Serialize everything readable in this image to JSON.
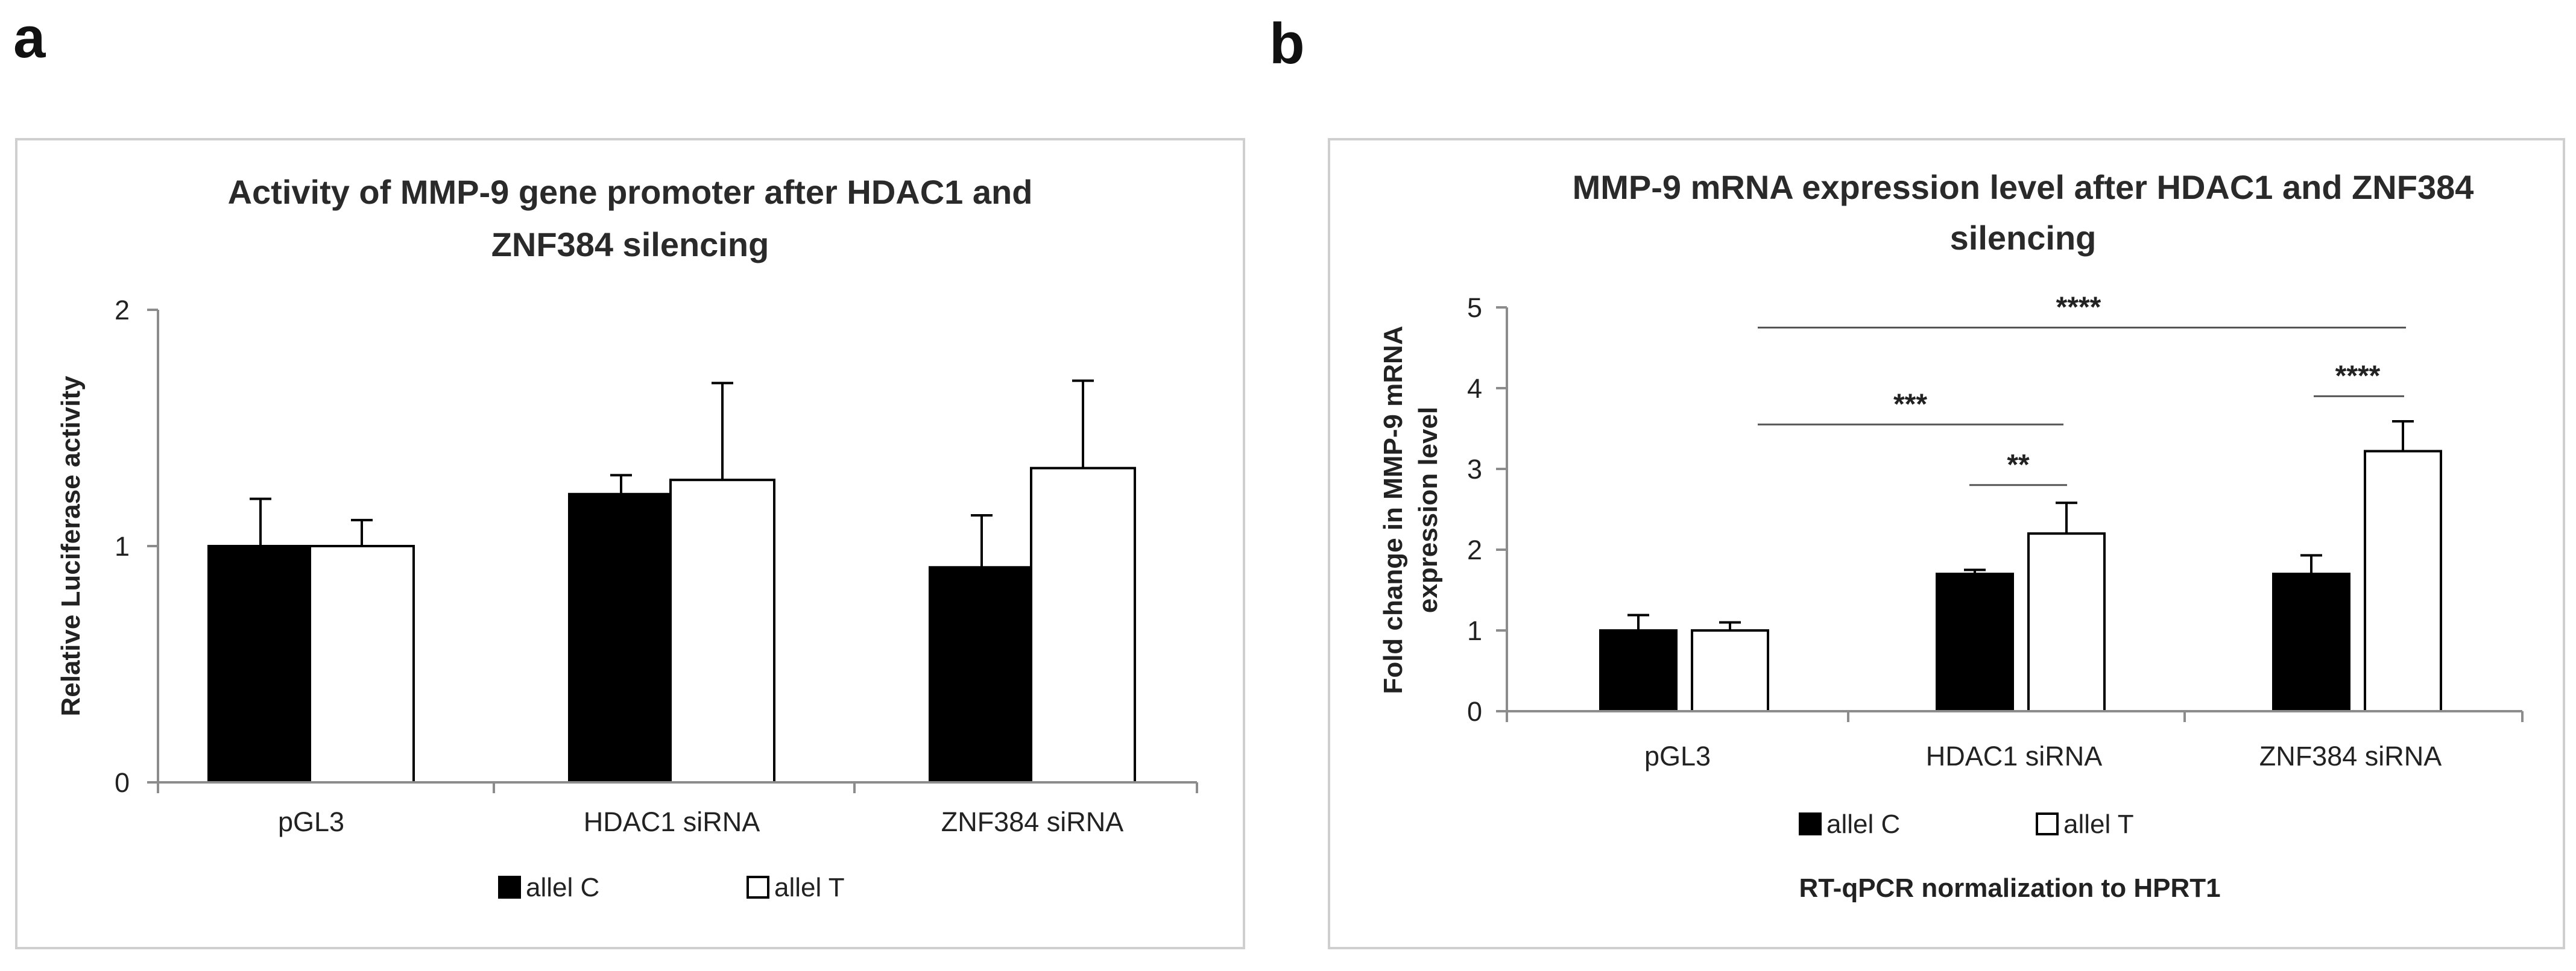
{
  "panels": [
    "a",
    "b"
  ],
  "chart_data": [
    {
      "type": "bar",
      "title_lines": [
        "Activity of MMP-9 gene promoter after HDAC1 and",
        "ZNF384 silencing"
      ],
      "ylabel": "Relative Luciferase activity",
      "xlabel": "",
      "ylim": [
        0,
        2
      ],
      "yticks": [
        "0",
        "1",
        "2"
      ],
      "ytick_values": [
        0,
        1,
        2
      ],
      "categories": [
        "pGL3",
        "HDAC1 siRNA",
        "ZNF384 siRNA"
      ],
      "series": [
        {
          "name": "allel C",
          "fill": "#000000",
          "values": [
            1.0,
            1.22,
            0.91
          ],
          "errors": [
            0.2,
            0.08,
            0.22
          ]
        },
        {
          "name": "allel T",
          "fill": "#ffffff",
          "values": [
            1.0,
            1.28,
            1.33
          ],
          "errors": [
            0.11,
            0.41,
            0.37
          ]
        }
      ],
      "legend": [
        "allel C",
        "allel T"
      ],
      "legend_position": "bottom",
      "grid": false
    },
    {
      "type": "bar",
      "title_lines": [
        "MMP-9 mRNA expression level after HDAC1 and ZNF384",
        "silencing"
      ],
      "ylabel_lines": [
        "Fold change in MMP-9  mRNA",
        "expression level"
      ],
      "xlabel": "RT-qPCR normalization to HPRT1",
      "ylim": [
        0,
        5
      ],
      "yticks": [
        "0",
        "1",
        "2",
        "3",
        "4",
        "5"
      ],
      "ytick_values": [
        0,
        1,
        2,
        3,
        4,
        5
      ],
      "categories": [
        "pGL3",
        "HDAC1 siRNA",
        "ZNF384 siRNA"
      ],
      "series": [
        {
          "name": "allel C",
          "fill": "#000000",
          "values": [
            1.0,
            1.7,
            1.7
          ],
          "errors": [
            0.19,
            0.05,
            0.23
          ]
        },
        {
          "name": "allel T",
          "fill": "#ffffff",
          "values": [
            1.0,
            2.2,
            3.22
          ],
          "errors": [
            0.1,
            0.38,
            0.37
          ]
        }
      ],
      "legend": [
        "allel C",
        "allel T"
      ],
      "legend_position": "bottom",
      "grid": false,
      "significance": [
        {
          "label": "****",
          "from": "pGL3",
          "to": "ZNF384 siRNA",
          "level": 4.75
        },
        {
          "label": "***",
          "from": "pGL3",
          "to": "HDAC1 siRNA",
          "level": 3.55
        },
        {
          "label": "**",
          "from": "HDAC1 siRNA allel C",
          "to": "HDAC1 siRNA allel T",
          "level": 2.8
        },
        {
          "label": "****",
          "from": "ZNF384 siRNA allel C",
          "to": "ZNF384 siRNA allel T",
          "level": 3.9
        }
      ]
    }
  ]
}
